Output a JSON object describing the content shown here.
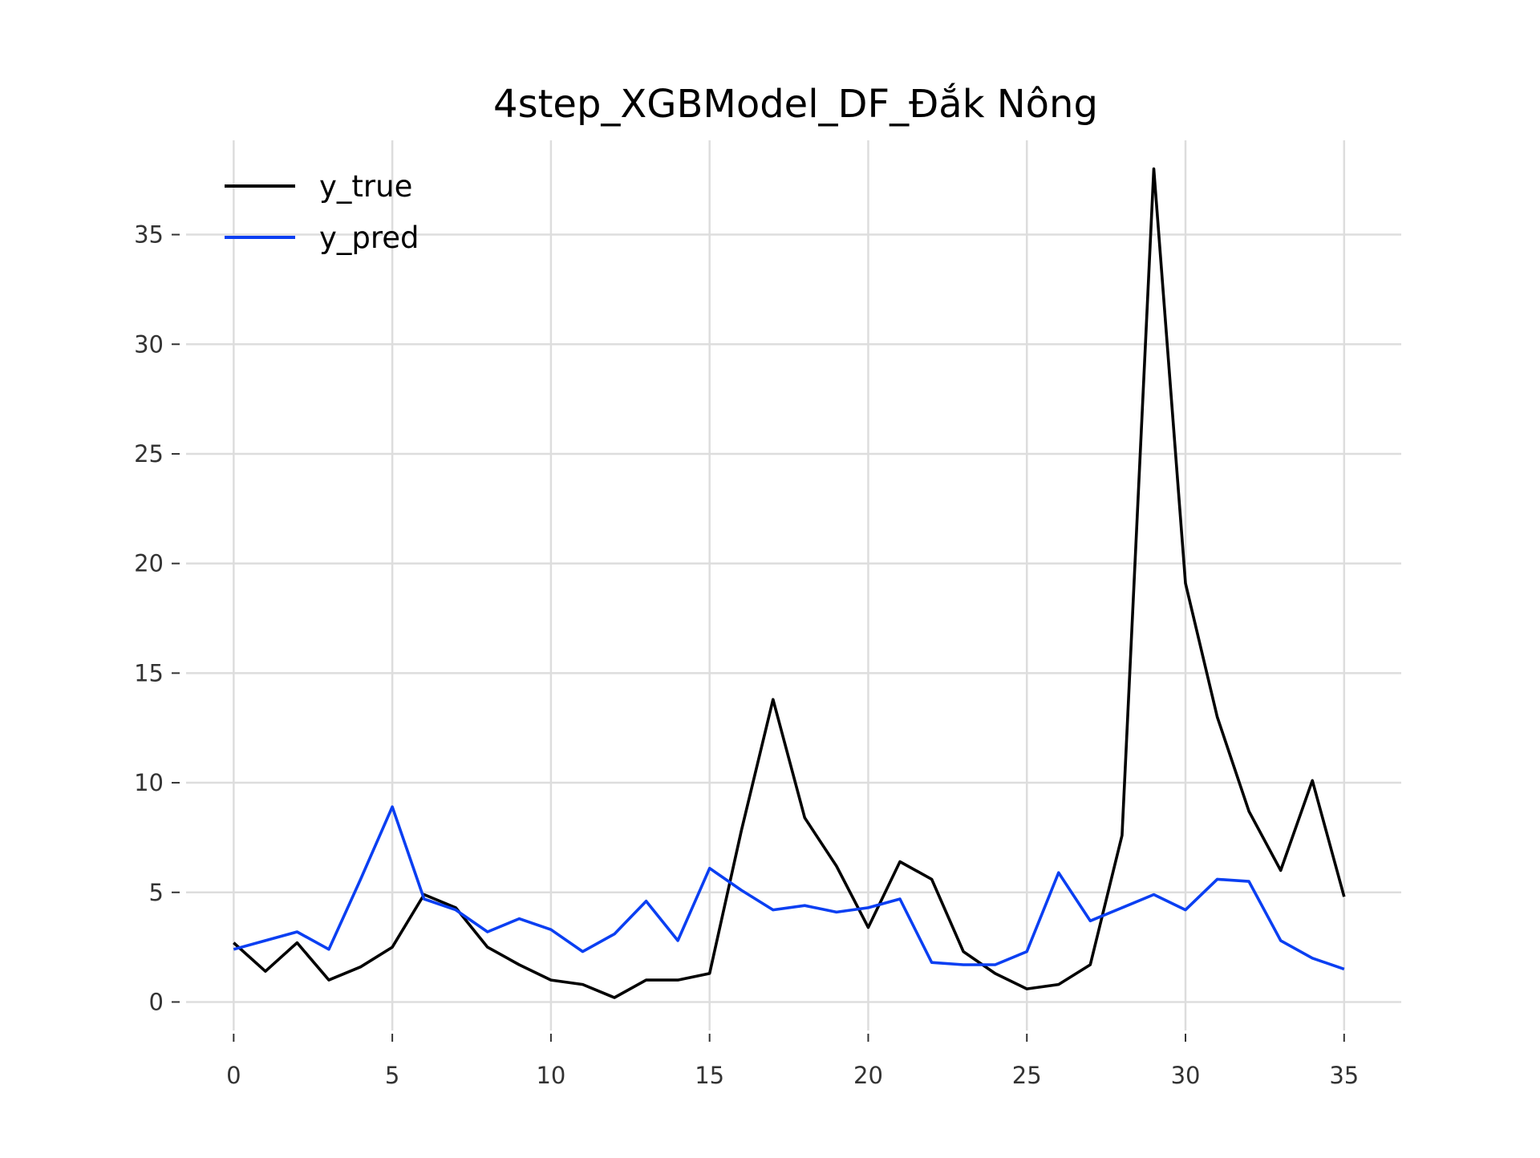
{
  "chart_data": {
    "type": "line",
    "title": "4step_XGBModel_DF_Đắk Nông",
    "xlabel": "",
    "ylabel": "",
    "xlim": [
      -1.5,
      36.8
    ],
    "ylim": [
      -1.3,
      39.3
    ],
    "grid": true,
    "legend_position": "top-left",
    "x_ticks": [
      0,
      5,
      10,
      15,
      20,
      25,
      30,
      35
    ],
    "y_ticks": [
      0,
      5,
      10,
      15,
      20,
      25,
      30,
      35
    ],
    "x": [
      0,
      1,
      2,
      3,
      4,
      5,
      6,
      7,
      8,
      9,
      10,
      11,
      12,
      13,
      14,
      15,
      16,
      17,
      18,
      19,
      20,
      21,
      22,
      23,
      24,
      25,
      26,
      27,
      28,
      29,
      30,
      31,
      32,
      33,
      34,
      35
    ],
    "series": [
      {
        "name": "y_true",
        "color": "#000000",
        "values": [
          2.7,
          1.4,
          2.7,
          1.0,
          1.6,
          2.5,
          4.9,
          4.3,
          2.5,
          1.7,
          1.0,
          0.8,
          0.2,
          1.0,
          1.0,
          1.3,
          7.8,
          13.8,
          8.4,
          6.2,
          3.4,
          6.4,
          5.6,
          2.3,
          1.3,
          0.6,
          0.8,
          1.7,
          7.6,
          38.0,
          19.1,
          13.0,
          8.7,
          6.0,
          10.1,
          4.8
        ]
      },
      {
        "name": "y_pred",
        "color": "#0a3ff2",
        "values": [
          2.4,
          2.8,
          3.2,
          2.4,
          5.6,
          8.9,
          4.7,
          4.2,
          3.2,
          3.8,
          3.3,
          2.3,
          3.1,
          4.6,
          2.8,
          6.1,
          5.1,
          4.2,
          4.4,
          4.1,
          4.3,
          4.7,
          1.8,
          1.7,
          1.7,
          2.3,
          5.9,
          3.7,
          4.3,
          4.9,
          4.2,
          5.6,
          5.5,
          2.8,
          2.0,
          1.5
        ]
      }
    ]
  }
}
